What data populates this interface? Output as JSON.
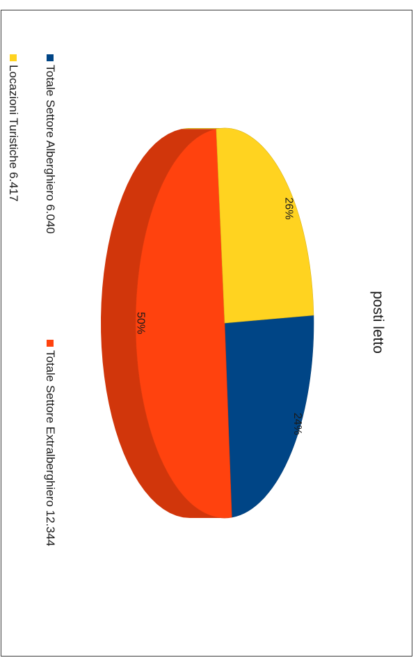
{
  "chart_data": {
    "type": "pie",
    "title": "posti letto",
    "categories": [
      "Totale Settore Alberghiero 6.040",
      "Totale Settore Extralberghiero 12.344",
      "Locazioni Turistiche 6.417"
    ],
    "values": [
      6040,
      12344,
      6417
    ],
    "percent_labels": [
      "24%",
      "50%",
      "26%"
    ],
    "colors": [
      "#004586",
      "#ff420e",
      "#ffd320"
    ],
    "legend_position": "bottom"
  }
}
